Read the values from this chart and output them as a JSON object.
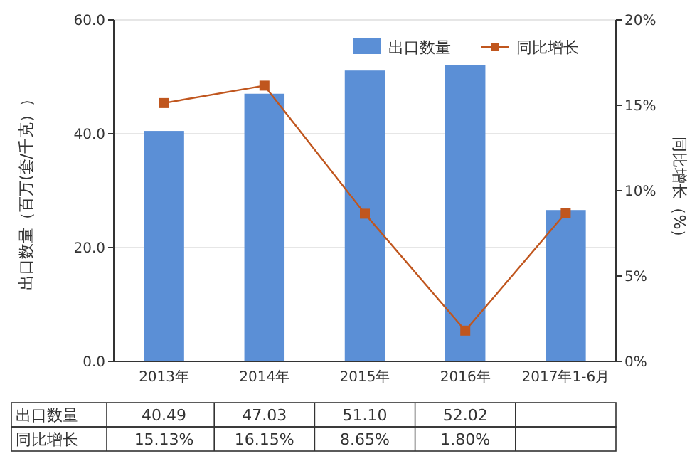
{
  "chart_data": {
    "type": "bar",
    "categories": [
      "2013年",
      "2014年",
      "2015年",
      "2016年",
      "2017年1-6月"
    ],
    "series": [
      {
        "name": "出口数量",
        "color": "#5b8fd6",
        "values": [
          40.49,
          47.03,
          51.1,
          52.02,
          26.6
        ],
        "value_labels": [
          "40.49",
          "47.03",
          "51.10",
          "52.02",
          null
        ]
      },
      {
        "name": "同比增长",
        "type": "line",
        "axis": "y2",
        "color": "#c0561e",
        "marker": "square",
        "values": [
          15.13,
          16.15,
          8.65,
          1.8,
          8.7
        ],
        "value_labels": [
          "15.13%",
          "16.15%",
          "8.65%",
          "1.80%",
          null
        ]
      }
    ],
    "ylabel": "出口数量（百万(套/千克））",
    "y2label": "同比增长（%）",
    "ylim": [
      0,
      60
    ],
    "yticks": [
      {
        "value": 0,
        "label": "0.0"
      },
      {
        "value": 20,
        "label": "20.0"
      },
      {
        "value": 40,
        "label": "40.0"
      },
      {
        "value": 60,
        "label": "60.0"
      }
    ],
    "y2lim": [
      0,
      20
    ],
    "y2ticks": [
      {
        "value": 0,
        "label": "0%"
      },
      {
        "value": 5,
        "label": "5%"
      },
      {
        "value": 10,
        "label": "10%"
      },
      {
        "value": 15,
        "label": "15%"
      },
      {
        "value": 20,
        "label": "20%"
      }
    ],
    "grid": "y",
    "legend": "top right"
  }
}
